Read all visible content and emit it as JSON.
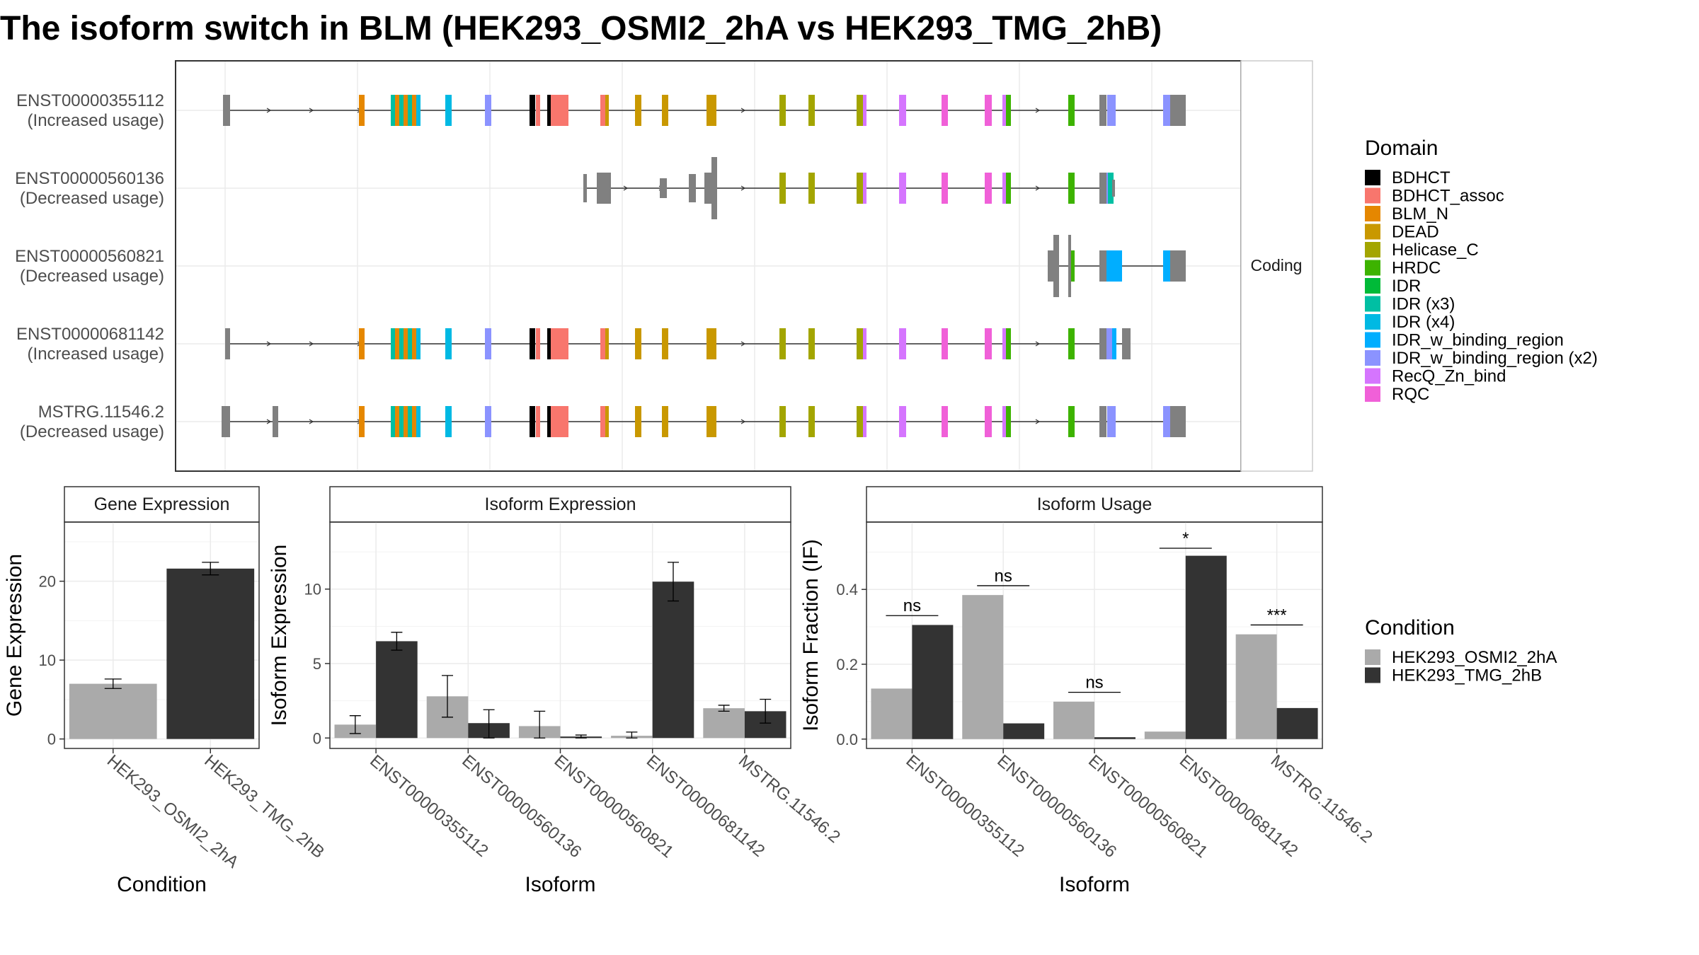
{
  "title": "The isoform switch in BLM (HEK293_OSMI2_2hA vs HEK293_TMG_2hB)",
  "colors": {
    "cond_a": "#aaaaaa",
    "cond_b": "#333333",
    "intron": "#333333",
    "utr": "#808080",
    "strip_bg": "#ffffff",
    "grid": "#ebebeb"
  },
  "structure_panel": {
    "facet_label": "Coding",
    "isoforms": [
      {
        "id": "ENST00000355112",
        "usage": "(Increased usage)"
      },
      {
        "id": "ENST00000560136",
        "usage": "(Decreased usage)"
      },
      {
        "id": "ENST00000560821",
        "usage": "(Decreased usage)"
      },
      {
        "id": "ENST00000681142",
        "usage": "(Increased usage)"
      },
      {
        "id": "MSTRG.11546.2",
        "usage": "(Decreased usage)"
      }
    ]
  },
  "legend_domain": {
    "title": "Domain",
    "items": [
      {
        "label": "BDHCT",
        "color": "#000000"
      },
      {
        "label": "BDHCT_assoc",
        "color": "#f8766d"
      },
      {
        "label": "BLM_N",
        "color": "#e58700"
      },
      {
        "label": "DEAD",
        "color": "#c99800"
      },
      {
        "label": "Helicase_C",
        "color": "#a3a500"
      },
      {
        "label": "HRDC",
        "color": "#3db300"
      },
      {
        "label": "IDR",
        "color": "#00ba38"
      },
      {
        "label": "IDR (x3)",
        "color": "#00bfa3"
      },
      {
        "label": "IDR (x4)",
        "color": "#00b9e3"
      },
      {
        "label": "IDR_w_binding_region",
        "color": "#00aeff"
      },
      {
        "label": "IDR_w_binding_region (x2)",
        "color": "#8b93ff"
      },
      {
        "label": "RecQ_Zn_bind",
        "color": "#d575fe"
      },
      {
        "label": "RQC",
        "color": "#f060d8"
      }
    ]
  },
  "legend_condition": {
    "title": "Condition",
    "items": [
      {
        "label": "HEK293_OSMI2_2hA",
        "color": "#aaaaaa"
      },
      {
        "label": "HEK293_TMG_2hB",
        "color": "#333333"
      }
    ]
  },
  "chart_data": [
    {
      "type": "bar",
      "title": "Gene Expression",
      "xlabel": "Condition",
      "ylabel": "Gene Expression",
      "categories": [
        "HEK293_OSMI2_2hA",
        "HEK293_TMG_2hB"
      ],
      "values": [
        7.0,
        21.6
      ],
      "errors": [
        [
          6.4,
          7.6
        ],
        [
          20.8,
          22.4
        ]
      ],
      "ylim": [
        -1.2,
        27.5
      ],
      "yticks": [
        0,
        10,
        20
      ]
    },
    {
      "type": "bar",
      "title": "Isoform Expression",
      "xlabel": "Isoform",
      "ylabel": "Isoform Expression",
      "categories": [
        "ENST00000355112",
        "ENST00000560136",
        "ENST00000560821",
        "ENST00000681142",
        "MSTRG.11546.2"
      ],
      "series": [
        {
          "name": "HEK293_OSMI2_2hA",
          "values": [
            0.9,
            2.8,
            0.8,
            0.15,
            2.0
          ],
          "errors": [
            [
              0.3,
              1.5
            ],
            [
              1.4,
              4.2
            ],
            [
              0.0,
              1.8
            ],
            [
              0.0,
              0.4
            ],
            [
              1.8,
              2.2
            ]
          ]
        },
        {
          "name": "HEK293_TMG_2hB",
          "values": [
            6.5,
            1.0,
            0.1,
            10.5,
            1.8
          ],
          "errors": [
            [
              5.9,
              7.1
            ],
            [
              0.0,
              1.9
            ],
            [
              0.0,
              0.2
            ],
            [
              9.2,
              11.8
            ],
            [
              1.0,
              2.6
            ]
          ]
        }
      ],
      "ylim": [
        -0.7,
        14.5
      ],
      "yticks": [
        0,
        5,
        10
      ]
    },
    {
      "type": "bar",
      "title": "Isoform Usage",
      "xlabel": "Isoform",
      "ylabel": "Isoform Fraction (IF)",
      "categories": [
        "ENST00000355112",
        "ENST00000560136",
        "ENST00000560821",
        "ENST00000681142",
        "MSTRG.11546.2"
      ],
      "series": [
        {
          "name": "HEK293_OSMI2_2hA",
          "values": [
            0.135,
            0.385,
            0.1,
            0.02,
            0.28
          ]
        },
        {
          "name": "HEK293_TMG_2hB",
          "values": [
            0.305,
            0.042,
            0.005,
            0.49,
            0.083
          ]
        }
      ],
      "significance": [
        "ns",
        "ns",
        "ns",
        "*",
        "***"
      ],
      "significance_y": [
        0.33,
        0.41,
        0.125,
        0.51,
        0.305
      ],
      "ylim": [
        -0.025,
        0.58
      ],
      "yticks": [
        0.0,
        0.2,
        0.4
      ],
      "ytick_labels": [
        "0.0",
        "0.2",
        "0.4"
      ]
    }
  ]
}
